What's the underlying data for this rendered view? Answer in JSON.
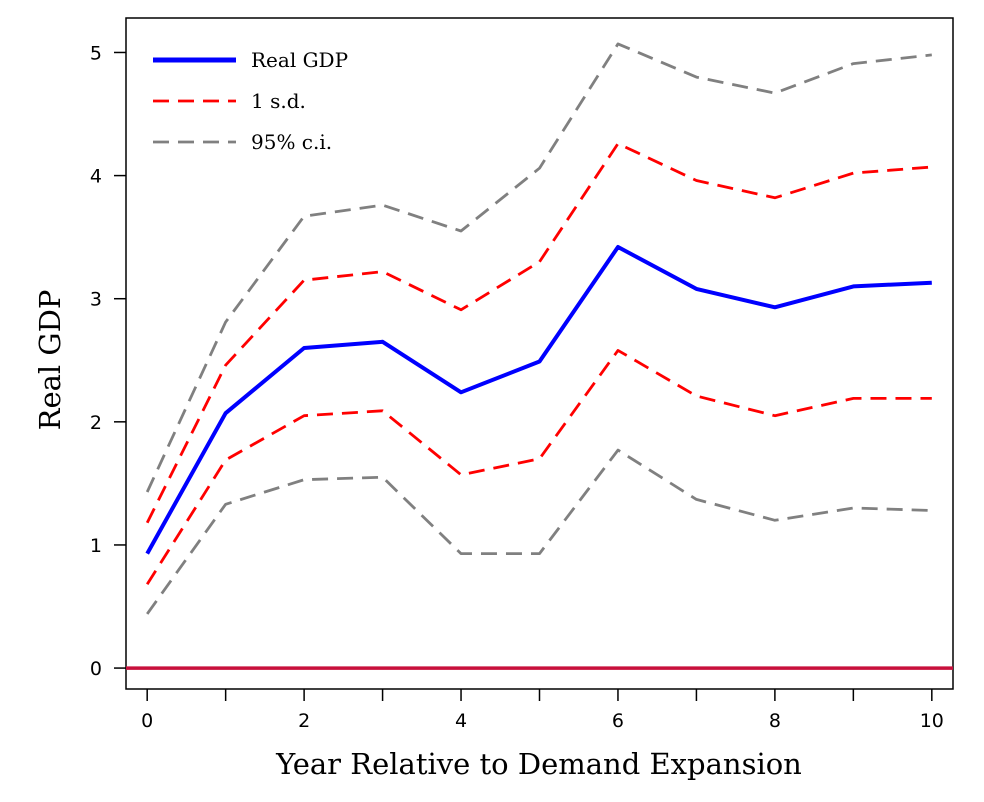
{
  "chart_data": {
    "type": "line",
    "title": "",
    "xlabel": "Year Relative to Demand Expansion",
    "ylabel": "Real GDP",
    "x": [
      0,
      1,
      2,
      3,
      4,
      5,
      6,
      7,
      8,
      9,
      10
    ],
    "xlim": [
      -0.27,
      10.27
    ],
    "ylim": [
      -0.17,
      5.28
    ],
    "x_ticks": [
      "0",
      "2",
      "4",
      "6",
      "8",
      "10"
    ],
    "x_tick_values": [
      0,
      2,
      4,
      6,
      8,
      10
    ],
    "x_minor_ticks": [
      1,
      3,
      5,
      7,
      9
    ],
    "y_ticks": [
      "0",
      "1",
      "2",
      "3",
      "4",
      "5"
    ],
    "y_tick_values": [
      0,
      1,
      2,
      3,
      4,
      5
    ],
    "grid": false,
    "legend_position": "top-left",
    "baseline": {
      "y": 0,
      "color": "#c8103c"
    },
    "series": [
      {
        "name": "Real GDP",
        "style": "solid",
        "color": "#0000ff",
        "values": [
          0.93,
          2.07,
          2.6,
          2.65,
          2.24,
          2.49,
          3.42,
          3.08,
          2.93,
          3.1,
          3.13
        ]
      },
      {
        "name": "1 s.d.",
        "style": "dashed",
        "color": "#ff0000",
        "values": [
          1.18,
          2.46,
          3.15,
          3.22,
          2.91,
          3.3,
          4.26,
          3.96,
          3.82,
          4.02,
          4.07
        ]
      },
      {
        "name": "",
        "style": "dashed",
        "color": "#ff0000",
        "values": [
          0.68,
          1.69,
          2.05,
          2.09,
          1.57,
          1.7,
          2.58,
          2.21,
          2.05,
          2.19,
          2.19
        ]
      },
      {
        "name": "95% c.i.",
        "style": "dashed",
        "color": "#808080",
        "values": [
          1.43,
          2.81,
          3.67,
          3.76,
          3.55,
          4.06,
          5.07,
          4.8,
          4.67,
          4.91,
          4.98
        ]
      },
      {
        "name": "",
        "style": "dashed",
        "color": "#808080",
        "values": [
          0.44,
          1.33,
          1.53,
          1.55,
          0.93,
          0.93,
          1.77,
          1.37,
          1.2,
          1.3,
          1.28
        ]
      }
    ],
    "legend": [
      {
        "label": "Real GDP",
        "style": "solid",
        "color": "#0000ff"
      },
      {
        "label": "1 s.d.",
        "style": "dashed",
        "color": "#ff0000"
      },
      {
        "label": "95% c.i.",
        "style": "dashed",
        "color": "#808080"
      }
    ]
  }
}
